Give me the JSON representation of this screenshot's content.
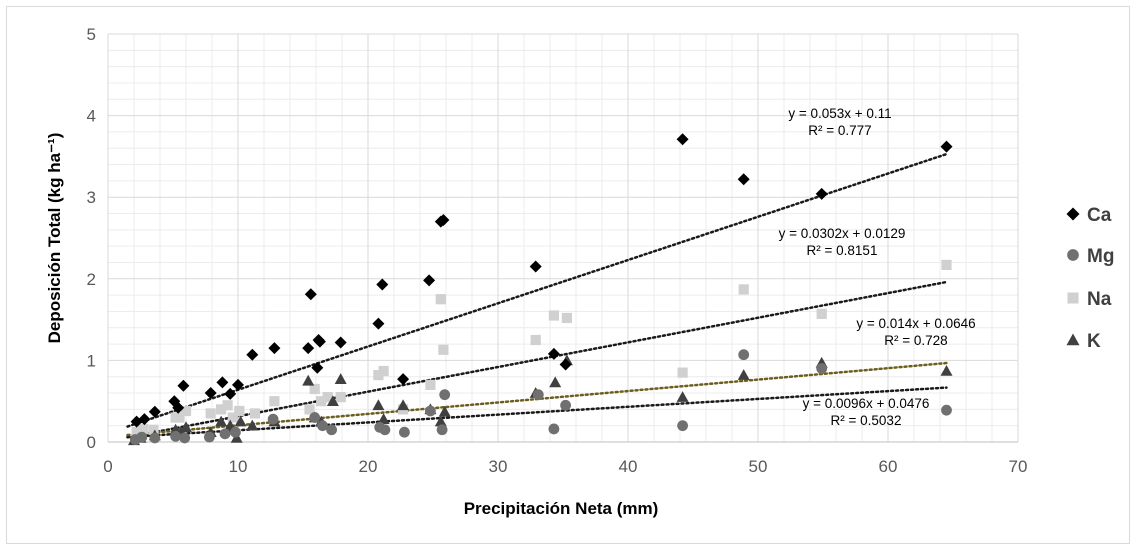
{
  "chart_data": {
    "type": "scatter",
    "title": "",
    "xlabel": "Precipitación Neta (mm)",
    "ylabel": "Deposición Total (kg ha⁻¹)",
    "xlim": [
      0,
      70
    ],
    "ylim": [
      0,
      5
    ],
    "x_ticks": [
      "0",
      "10",
      "20",
      "30",
      "40",
      "50",
      "60",
      "70"
    ],
    "y_ticks": [
      "0",
      "1",
      "2",
      "3",
      "4",
      "5"
    ],
    "grid": true,
    "legend_position": "right",
    "series": [
      {
        "name": "Ca",
        "marker": "diamond",
        "color": "#000000",
        "trend_color": "#1a1a1a",
        "trendline": {
          "slope": 0.053,
          "intercept": 0.11,
          "x_range": [
            1.5,
            64.5
          ],
          "equation": "y = 0.053x + 0.11",
          "r2": "R² = 0.777"
        },
        "points": [
          [
            2.2,
            0.25
          ],
          [
            2.8,
            0.28
          ],
          [
            3.6,
            0.37
          ],
          [
            5.1,
            0.5
          ],
          [
            5.4,
            0.42
          ],
          [
            5.8,
            0.69
          ],
          [
            7.9,
            0.6
          ],
          [
            8.8,
            0.73
          ],
          [
            9.4,
            0.59
          ],
          [
            10,
            0.7
          ],
          [
            11.1,
            1.07
          ],
          [
            12.8,
            1.15
          ],
          [
            15.4,
            1.15
          ],
          [
            15.6,
            1.81
          ],
          [
            16.1,
            0.91
          ],
          [
            16.2,
            1.25
          ],
          [
            16.3,
            1.23
          ],
          [
            17.9,
            1.22
          ],
          [
            20.8,
            1.45
          ],
          [
            21.1,
            1.93
          ],
          [
            22.7,
            0.77
          ],
          [
            24.7,
            1.98
          ],
          [
            25.6,
            2.7
          ],
          [
            25.8,
            2.72
          ],
          [
            32.9,
            2.15
          ],
          [
            34.3,
            1.08
          ],
          [
            35.2,
            0.95
          ],
          [
            44.2,
            3.71
          ],
          [
            48.9,
            3.22
          ],
          [
            54.9,
            3.04
          ],
          [
            64.5,
            3.62
          ]
        ]
      },
      {
        "name": "Mg",
        "marker": "circle",
        "color": "#707070",
        "trend_color": "#1a1a1a",
        "trendline": {
          "slope": 0.0096,
          "intercept": 0.0476,
          "x_range": [
            1.5,
            64.5
          ],
          "equation": "y = 0.0096x + 0.0476",
          "r2": "R² = 0.5032"
        },
        "points": [
          [
            2.1,
            0.03
          ],
          [
            2.6,
            0.06
          ],
          [
            3.6,
            0.05
          ],
          [
            5.2,
            0.07
          ],
          [
            5.9,
            0.05
          ],
          [
            7.8,
            0.06
          ],
          [
            9,
            0.1
          ],
          [
            9.8,
            0.12
          ],
          [
            12.7,
            0.28
          ],
          [
            15.9,
            0.3
          ],
          [
            16.5,
            0.2
          ],
          [
            17.2,
            0.15
          ],
          [
            20.9,
            0.18
          ],
          [
            21.3,
            0.15
          ],
          [
            22.8,
            0.12
          ],
          [
            24.8,
            0.38
          ],
          [
            25.7,
            0.15
          ],
          [
            25.9,
            0.58
          ],
          [
            33.1,
            0.58
          ],
          [
            34.3,
            0.16
          ],
          [
            35.2,
            0.45
          ],
          [
            44.2,
            0.2
          ],
          [
            48.9,
            1.07
          ],
          [
            54.9,
            0.9
          ],
          [
            64.5,
            0.39
          ]
        ]
      },
      {
        "name": "Na",
        "marker": "square",
        "color": "#d0d0d0",
        "trend_color": "#1a1a1a",
        "trendline": {
          "slope": 0.0302,
          "intercept": 0.0129,
          "x_range": [
            1.5,
            64.5
          ],
          "equation": "y = 0.0302x + 0.0129",
          "r2": "R² = 0.8151"
        },
        "points": [
          [
            2.2,
            0.12
          ],
          [
            2.7,
            0.16
          ],
          [
            3.5,
            0.15
          ],
          [
            5.2,
            0.3
          ],
          [
            5.5,
            0.3
          ],
          [
            6,
            0.38
          ],
          [
            7.9,
            0.35
          ],
          [
            8.7,
            0.4
          ],
          [
            9.2,
            0.45
          ],
          [
            9.6,
            0.3
          ],
          [
            10.1,
            0.38
          ],
          [
            11.3,
            0.35
          ],
          [
            12.8,
            0.5
          ],
          [
            15.5,
            0.4
          ],
          [
            15.9,
            0.65
          ],
          [
            16.4,
            0.5
          ],
          [
            16.9,
            0.55
          ],
          [
            17.9,
            0.55
          ],
          [
            20.8,
            0.82
          ],
          [
            21.2,
            0.87
          ],
          [
            22.7,
            0.4
          ],
          [
            24.8,
            0.7
          ],
          [
            25.6,
            1.75
          ],
          [
            25.8,
            1.13
          ],
          [
            32.9,
            1.25
          ],
          [
            34.3,
            1.55
          ],
          [
            35.3,
            1.52
          ],
          [
            44.2,
            0.85
          ],
          [
            48.9,
            1.87
          ],
          [
            54.9,
            1.57
          ],
          [
            64.5,
            2.17
          ]
        ]
      },
      {
        "name": "K",
        "marker": "triangle",
        "color": "#404040",
        "trend_color": "#6b5e1e",
        "trendline": {
          "slope": 0.014,
          "intercept": 0.0646,
          "x_range": [
            1.5,
            64.5
          ],
          "equation": "y = 0.014x + 0.0646",
          "r2": "R² = 0.728"
        },
        "points": [
          [
            2,
            0.02
          ],
          [
            2.5,
            0.05
          ],
          [
            3.6,
            0.08
          ],
          [
            5.2,
            0.15
          ],
          [
            5.6,
            0.12
          ],
          [
            6,
            0.18
          ],
          [
            7.9,
            0.12
          ],
          [
            8.7,
            0.25
          ],
          [
            9.4,
            0.2
          ],
          [
            9.9,
            0.05
          ],
          [
            10.2,
            0.25
          ],
          [
            11.1,
            0.2
          ],
          [
            12.8,
            0.25
          ],
          [
            15.4,
            0.75
          ],
          [
            15.9,
            0.3
          ],
          [
            16.4,
            0.25
          ],
          [
            17.3,
            0.5
          ],
          [
            17.9,
            0.77
          ],
          [
            20.8,
            0.45
          ],
          [
            21.2,
            0.28
          ],
          [
            22.7,
            0.45
          ],
          [
            24.8,
            0.4
          ],
          [
            25.6,
            0.25
          ],
          [
            25.9,
            0.37
          ],
          [
            32.9,
            0.6
          ],
          [
            34.4,
            0.73
          ],
          [
            35.3,
            1.0
          ],
          [
            44.2,
            0.55
          ],
          [
            48.9,
            0.82
          ],
          [
            54.9,
            0.97
          ],
          [
            64.5,
            0.87
          ]
        ]
      }
    ]
  }
}
